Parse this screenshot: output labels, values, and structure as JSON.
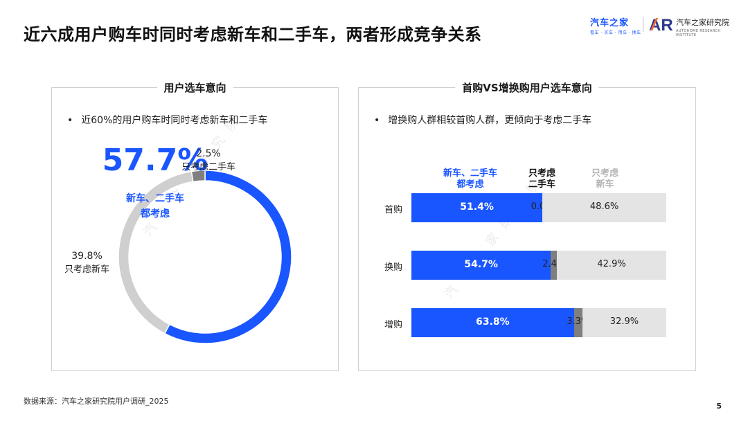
{
  "header": {
    "title": "近六成用户购车时同时考虑新车和二手车，两者形成竞争关系"
  },
  "logos": {
    "autohome_name": "汽车之家",
    "autohome_tagline": "看车 · 买车 · 用车 · 换车",
    "ar_mark": "AR",
    "research_name": "汽车之家研究院",
    "research_tagline": "AUTOHOME RESEARCH INSTITUTE"
  },
  "watermark": "汽车之家研究院",
  "colors": {
    "blue": "#1a56ff",
    "light_gray": "#cfcfcf",
    "dark_gray": "#7f7f7f",
    "bar_gray": "#e4e4e4"
  },
  "left_panel": {
    "title": "用户选车意向",
    "bullet": "近60%的用户购车时同时考虑新车和二手车"
  },
  "right_panel": {
    "title": "首购VS增换购用户选车意向",
    "bullet": "增换购人群相较首购人群，更倾向于考虑二手车"
  },
  "chart_data": [
    {
      "type": "pie",
      "title": "用户选车意向",
      "center_value": "57.7%",
      "center_label_line1": "新车、二手车",
      "center_label_line2": "都考虑",
      "slices": [
        {
          "name": "新车、二手车都考虑",
          "value": 57.7,
          "color": "#1a56ff"
        },
        {
          "name": "只考虑新车",
          "value": 39.8,
          "color": "#cfcfcf",
          "label_value": "39.8%",
          "label_name": "只考虑新车"
        },
        {
          "name": "只考虑二手车",
          "value": 2.5,
          "color": "#7f7f7f",
          "label_value": "2.5%",
          "label_name": "只考虑二手车"
        }
      ]
    },
    {
      "type": "bar",
      "orientation": "horizontal",
      "stacked": true,
      "title": "首购VS增换购用户选车意向",
      "categories": [
        "首购",
        "换购",
        "增购"
      ],
      "legend": [
        {
          "line1": "新车、二手车",
          "line2": "都考虑",
          "color": "#1a56ff"
        },
        {
          "line1": "只考虑",
          "line2": "二手车",
          "color": "#111111"
        },
        {
          "line1": "只考虑",
          "line2": "新车",
          "color": "#b3b3b3"
        }
      ],
      "series": [
        {
          "name": "新车、二手车都考虑",
          "values": [
            51.4,
            54.7,
            63.8
          ],
          "labels": [
            "51.4%",
            "54.7%",
            "63.8%"
          ],
          "color": "#1a56ff"
        },
        {
          "name": "只考虑二手车",
          "values": [
            0.0,
            2.4,
            3.3
          ],
          "labels": [
            "0.0%",
            "2.4%",
            "3.3%"
          ],
          "color": "#7f7f7f"
        },
        {
          "name": "只考虑新车",
          "values": [
            48.6,
            42.9,
            32.9
          ],
          "labels": [
            "48.6%",
            "42.9%",
            "32.9%"
          ],
          "color": "#e4e4e4"
        }
      ]
    }
  ],
  "footer": {
    "source": "数据来源：汽车之家研究院用户调研_2025",
    "page_number": "5"
  }
}
